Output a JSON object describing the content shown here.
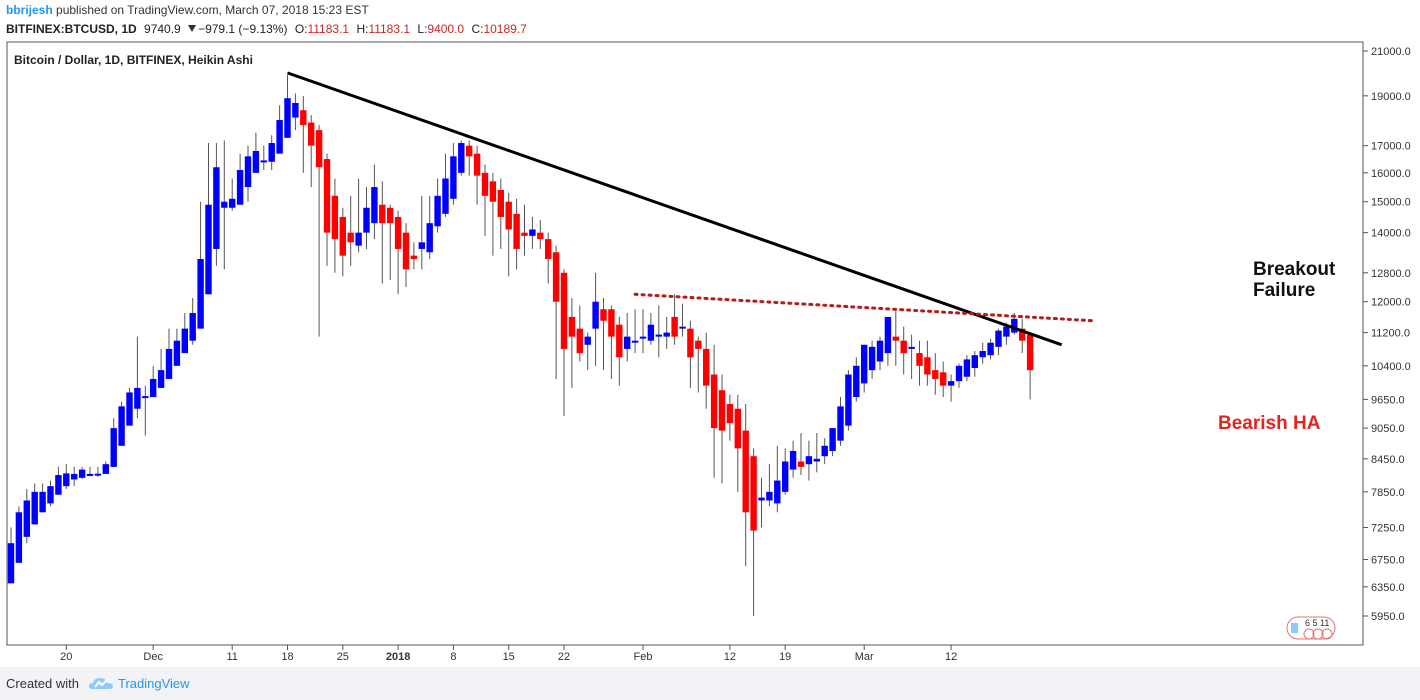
{
  "header": {
    "publisher": "bbrijesh",
    "published_text": "published on TradingView.com, March 07, 2018 15:23 EST",
    "symbol": "BITFINEX:BTCUSD, 1D",
    "last_price": "9740.9",
    "change": "−979.1 (−9.13%)",
    "o_label": "O:",
    "o_value": "11183.1",
    "h_label": "H:",
    "h_value": "11183.1",
    "l_label": "L:",
    "l_value": "9400.0",
    "c_label": "C:",
    "c_value": "10189.7"
  },
  "chart_title": "Bitcoin / Dollar, 1D, BITFINEX, Heikin Ashi",
  "annotations": {
    "breakout_line1": "Breakout",
    "breakout_line2": "Failure",
    "bearish": "Bearish HA"
  },
  "footer": {
    "created_with": "Created with",
    "brand": "TradingView"
  },
  "watermark_icon": "tradingview-flag-icon",
  "watermark_numbers": "6  5  11",
  "colors": {
    "bull": "#0000ff",
    "bear": "#ff0000",
    "trendline": "#000000",
    "dotted_line": "#b71c1c",
    "annotation_dark": "#111111",
    "annotation_red": "#e52421",
    "axis": "#555555"
  },
  "chart_data": {
    "type": "candlestick",
    "style": "Heikin Ashi",
    "title": "Bitcoin / Dollar, 1D, BITFINEX, Heikin Ashi",
    "y_scale": "log",
    "y_axis_side": "right",
    "ylim": [
      5700,
      21500
    ],
    "y_ticks": [
      21000,
      19000,
      17000,
      16000,
      15000,
      14000,
      12800,
      12000,
      11200,
      10400,
      9650,
      9050,
      8450,
      7850,
      7250,
      6750,
      6350,
      5950
    ],
    "y_tick_labels": [
      "21000.0",
      "19000.0",
      "17000.0",
      "16000.0",
      "15000.0",
      "14000.0",
      "12800.0",
      "12000.0",
      "11200.0",
      "10400.0",
      "9650.0",
      "9050.0",
      "8450.0",
      "7850.0",
      "7250.0",
      "6750.0",
      "6350.0",
      "5950.0"
    ],
    "x_ticks": [
      {
        "label": "20",
        "date": "2017-11-20"
      },
      {
        "label": "Dec",
        "date": "2017-12-01"
      },
      {
        "label": "11",
        "date": "2017-12-11"
      },
      {
        "label": "18",
        "date": "2017-12-18"
      },
      {
        "label": "25",
        "date": "2017-12-25"
      },
      {
        "label": "2018",
        "date": "2018-01-01"
      },
      {
        "label": "8",
        "date": "2018-01-08"
      },
      {
        "label": "15",
        "date": "2018-01-15"
      },
      {
        "label": "22",
        "date": "2018-01-22"
      },
      {
        "label": "Feb",
        "date": "2018-02-01"
      },
      {
        "label": "12",
        "date": "2018-02-12"
      },
      {
        "label": "19",
        "date": "2018-02-19"
      },
      {
        "label": "Mar",
        "date": "2018-03-01"
      },
      {
        "label": "12",
        "date": "2018-03-12"
      }
    ],
    "grid": false,
    "columns": [
      "date",
      "open",
      "high",
      "low",
      "close"
    ],
    "candles": [
      [
        "2017-11-13",
        6400,
        7250,
        6400,
        7000
      ],
      [
        "2017-11-14",
        6700,
        7600,
        6700,
        7500
      ],
      [
        "2017-11-15",
        7100,
        7900,
        7000,
        7700
      ],
      [
        "2017-11-16",
        7300,
        8000,
        7300,
        7850
      ],
      [
        "2017-11-17",
        7500,
        8000,
        7500,
        7850
      ],
      [
        "2017-11-18",
        7650,
        8050,
        7600,
        7950
      ],
      [
        "2017-11-19",
        7800,
        8300,
        7800,
        8150
      ],
      [
        "2017-11-20",
        7950,
        8350,
        7900,
        8180
      ],
      [
        "2017-11-21",
        8070,
        8300,
        7950,
        8170
      ],
      [
        "2017-11-22",
        8100,
        8300,
        8080,
        8250
      ],
      [
        "2017-11-23",
        8160,
        8300,
        8130,
        8170
      ],
      [
        "2017-11-24",
        8165,
        8300,
        8120,
        8175
      ],
      [
        "2017-11-25",
        8170,
        8400,
        8170,
        8350
      ],
      [
        "2017-11-26",
        8300,
        9250,
        8300,
        9050
      ],
      [
        "2017-11-27",
        8700,
        9600,
        8700,
        9500
      ],
      [
        "2017-11-28",
        9100,
        9900,
        9100,
        9800
      ],
      [
        "2017-11-29",
        9450,
        11100,
        9250,
        9900
      ],
      [
        "2017-11-30",
        9700,
        9950,
        8900,
        9720
      ],
      [
        "2017-12-01",
        9700,
        10400,
        9700,
        10100
      ],
      [
        "2017-12-02",
        9900,
        10800,
        9900,
        10300
      ],
      [
        "2017-12-03",
        10100,
        11300,
        10100,
        10800
      ],
      [
        "2017-12-04",
        10400,
        11300,
        10400,
        11000
      ],
      [
        "2017-12-05",
        10700,
        11700,
        10700,
        11300
      ],
      [
        "2017-12-06",
        11000,
        12100,
        10900,
        11700
      ],
      [
        "2017-12-07",
        11300,
        15000,
        11300,
        13200
      ],
      [
        "2017-12-08",
        12200,
        17100,
        12200,
        14900
      ],
      [
        "2017-12-09",
        13500,
        17100,
        13000,
        16200
      ],
      [
        "2017-12-10",
        14800,
        17200,
        12900,
        15000
      ],
      [
        "2017-12-11",
        14800,
        15800,
        14700,
        15100
      ],
      [
        "2017-12-12",
        14900,
        16700,
        14900,
        16100
      ],
      [
        "2017-12-13",
        15500,
        17000,
        15000,
        16600
      ],
      [
        "2017-12-14",
        16000,
        17500,
        16000,
        16800
      ],
      [
        "2017-12-15",
        16400,
        17000,
        16100,
        16450
      ],
      [
        "2017-12-16",
        16400,
        17400,
        16100,
        17100
      ],
      [
        "2017-12-17",
        16700,
        18600,
        16700,
        18000
      ],
      [
        "2017-12-18",
        17300,
        19900,
        17300,
        18900
      ],
      [
        "2017-12-19",
        18100,
        19100,
        17600,
        18700
      ],
      [
        "2017-12-20",
        18400,
        19000,
        16000,
        17800
      ],
      [
        "2017-12-21",
        17900,
        18200,
        15500,
        17000
      ],
      [
        "2017-12-22",
        17600,
        17800,
        11100,
        16200
      ],
      [
        "2017-12-23",
        16500,
        16700,
        13000,
        14000
      ],
      [
        "2017-12-24",
        15200,
        15800,
        12800,
        13800
      ],
      [
        "2017-12-25",
        14500,
        14800,
        12700,
        13300
      ],
      [
        "2017-12-26",
        14000,
        15200,
        13000,
        13700
      ],
      [
        "2017-12-27",
        13600,
        15800,
        13400,
        14000
      ],
      [
        "2017-12-28",
        14000,
        15500,
        13500,
        14800
      ],
      [
        "2017-12-29",
        14300,
        16300,
        13800,
        15500
      ],
      [
        "2017-12-30",
        14900,
        15700,
        12500,
        14300
      ],
      [
        "2017-12-31",
        14800,
        14900,
        12600,
        14300
      ],
      [
        "2018-01-01",
        14500,
        14700,
        12200,
        13500
      ],
      [
        "2018-01-02",
        14000,
        14300,
        12400,
        12900
      ],
      [
        "2018-01-03",
        13300,
        13700,
        12900,
        13200
      ],
      [
        "2018-01-04",
        13500,
        15200,
        12900,
        13700
      ],
      [
        "2018-01-05",
        13400,
        15200,
        13200,
        14300
      ],
      [
        "2018-01-06",
        14200,
        15800,
        14000,
        15200
      ],
      [
        "2018-01-07",
        14600,
        16700,
        14500,
        15800
      ],
      [
        "2018-01-08",
        15100,
        17100,
        14900,
        16600
      ],
      [
        "2018-01-09",
        16000,
        17200,
        15900,
        17100
      ],
      [
        "2018-01-10",
        17000,
        17200,
        15900,
        16600
      ],
      [
        "2018-01-11",
        16700,
        17000,
        14900,
        15900
      ],
      [
        "2018-01-12",
        16000,
        16300,
        13900,
        15200
      ],
      [
        "2018-01-13",
        15700,
        16000,
        13300,
        15000
      ],
      [
        "2018-01-14",
        15400,
        15800,
        13500,
        14500
      ],
      [
        "2018-01-15",
        15000,
        15300,
        12700,
        14100
      ],
      [
        "2018-01-16",
        14600,
        15100,
        12900,
        13500
      ],
      [
        "2018-01-17",
        14000,
        14900,
        13300,
        13900
      ],
      [
        "2018-01-18",
        13900,
        14500,
        13500,
        14100
      ],
      [
        "2018-01-19",
        14000,
        14400,
        13500,
        13800
      ],
      [
        "2018-01-20",
        13800,
        14000,
        12500,
        13200
      ],
      [
        "2018-01-21",
        13400,
        13600,
        10100,
        12000
      ],
      [
        "2018-01-22",
        12800,
        12900,
        9300,
        10800
      ],
      [
        "2018-01-23",
        11600,
        12100,
        9900,
        11100
      ],
      [
        "2018-01-24",
        11300,
        11900,
        10500,
        10700
      ],
      [
        "2018-01-25",
        10900,
        11200,
        10300,
        11100
      ],
      [
        "2018-01-26",
        11300,
        12800,
        10400,
        12000
      ],
      [
        "2018-01-27",
        11800,
        12100,
        10300,
        11500
      ],
      [
        "2018-01-28",
        11800,
        11900,
        10100,
        11100
      ],
      [
        "2018-01-29",
        11400,
        11600,
        9950,
        10600
      ],
      [
        "2018-01-30",
        10800,
        11700,
        10500,
        11100
      ],
      [
        "2018-01-31",
        11000,
        11800,
        10700,
        11000
      ],
      [
        "2018-02-01",
        11100,
        11800,
        10700,
        11100
      ],
      [
        "2018-02-02",
        11000,
        11700,
        10900,
        11400
      ],
      [
        "2018-02-03",
        11100,
        11900,
        10600,
        11150
      ],
      [
        "2018-02-04",
        11100,
        11600,
        10800,
        11200
      ],
      [
        "2018-02-05",
        11600,
        12200,
        10900,
        11100
      ],
      [
        "2018-02-06",
        11350,
        11950,
        11100,
        11350
      ],
      [
        "2018-02-07",
        11300,
        11500,
        9900,
        10600
      ],
      [
        "2018-02-08",
        11000,
        11100,
        9800,
        10800
      ],
      [
        "2018-02-09",
        10800,
        11200,
        9450,
        9950
      ],
      [
        "2018-02-10",
        10200,
        10900,
        8100,
        9050
      ],
      [
        "2018-02-11",
        9850,
        10200,
        8000,
        9000
      ],
      [
        "2018-02-12",
        9550,
        9750,
        8800,
        9150
      ],
      [
        "2018-02-13",
        9450,
        9750,
        7850,
        8650
      ],
      [
        "2018-02-14",
        9000,
        9550,
        6650,
        7500
      ],
      [
        "2018-02-15",
        8500,
        8650,
        5950,
        7200
      ],
      [
        "2018-02-16",
        7700,
        8100,
        7250,
        7750
      ],
      [
        "2018-02-17",
        7700,
        8350,
        7600,
        7850
      ],
      [
        "2018-02-18",
        7650,
        8700,
        7500,
        8050
      ],
      [
        "2018-02-19",
        7850,
        8650,
        7800,
        8400
      ],
      [
        "2018-02-20",
        8250,
        8800,
        8100,
        8600
      ],
      [
        "2018-02-21",
        8400,
        8950,
        8150,
        8300
      ],
      [
        "2018-02-22",
        8350,
        8800,
        8050,
        8500
      ],
      [
        "2018-02-23",
        8400,
        8950,
        8200,
        8450
      ],
      [
        "2018-02-24",
        8500,
        8850,
        8350,
        8700
      ],
      [
        "2018-02-25",
        8600,
        9050,
        8500,
        9050
      ],
      [
        "2018-02-26",
        8800,
        9700,
        8700,
        9500
      ],
      [
        "2018-02-27",
        9100,
        10300,
        9000,
        10200
      ],
      [
        "2018-02-28",
        9700,
        10600,
        9600,
        10400
      ],
      [
        "2018-03-01",
        10000,
        10900,
        9800,
        10900
      ],
      [
        "2018-03-02",
        10300,
        11000,
        10100,
        10850
      ],
      [
        "2018-03-03",
        10500,
        11100,
        10300,
        11000
      ],
      [
        "2018-03-04",
        10700,
        11500,
        10400,
        11600
      ],
      [
        "2018-03-05",
        11100,
        11750,
        10400,
        11000
      ],
      [
        "2018-03-06",
        11000,
        11350,
        10200,
        10700
      ],
      [
        "2018-03-07",
        10800,
        11150,
        10100,
        10850
      ],
      [
        "2018-03-08",
        10700,
        11000,
        9950,
        10400
      ],
      [
        "2018-03-09",
        10600,
        11000,
        9950,
        10200
      ],
      [
        "2018-03-10",
        10300,
        10700,
        9750,
        10100
      ],
      [
        "2018-03-11",
        10250,
        10500,
        9700,
        9950
      ],
      [
        "2018-03-12",
        9950,
        10200,
        9600,
        10050
      ],
      [
        "2018-03-13",
        10050,
        10450,
        9900,
        10400
      ],
      [
        "2018-03-14",
        10150,
        10650,
        10050,
        10550
      ],
      [
        "2018-03-15",
        10350,
        10750,
        10150,
        10650
      ],
      [
        "2018-03-16",
        10600,
        10950,
        10450,
        10750
      ],
      [
        "2018-03-17",
        10650,
        11050,
        10550,
        10950
      ],
      [
        "2018-03-18",
        10850,
        11300,
        10650,
        11250
      ],
      [
        "2018-03-19",
        11100,
        11450,
        10900,
        11350
      ],
      [
        "2018-03-20",
        11200,
        11700,
        11150,
        11550
      ],
      [
        "2018-03-21",
        11300,
        11550,
        10700,
        11000
      ],
      [
        "2018-03-22",
        11150,
        11200,
        9650,
        10300
      ]
    ],
    "lines": [
      {
        "name": "trendline",
        "style": "solid",
        "from": [
          "2017-12-18",
          20000
        ],
        "to": [
          "2018-03-26",
          10900
        ]
      },
      {
        "name": "resistance",
        "style": "dotted",
        "from": [
          "2018-01-31",
          12200
        ],
        "to": [
          "2018-03-30",
          11500
        ]
      }
    ]
  }
}
